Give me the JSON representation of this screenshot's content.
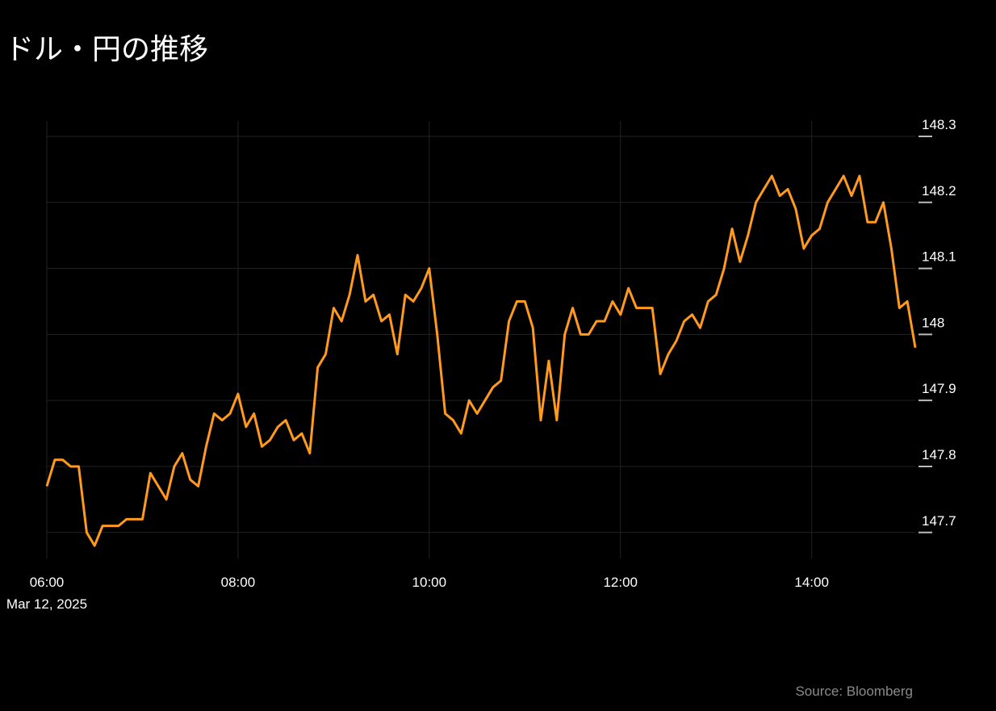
{
  "chart_data": {
    "type": "line",
    "title": "ドル・円の推移",
    "source": "Source: Bloomberg",
    "date_label": "Mar 12, 2025",
    "x": [
      "06:00",
      "06:05",
      "06:10",
      "06:15",
      "06:20",
      "06:25",
      "06:30",
      "06:35",
      "06:40",
      "06:45",
      "06:50",
      "06:55",
      "07:00",
      "07:05",
      "07:10",
      "07:15",
      "07:20",
      "07:25",
      "07:30",
      "07:35",
      "07:40",
      "07:45",
      "07:50",
      "07:55",
      "08:00",
      "08:05",
      "08:10",
      "08:15",
      "08:20",
      "08:25",
      "08:30",
      "08:35",
      "08:40",
      "08:45",
      "08:50",
      "08:55",
      "09:00",
      "09:05",
      "09:10",
      "09:15",
      "09:20",
      "09:25",
      "09:30",
      "09:35",
      "09:40",
      "09:45",
      "09:50",
      "09:55",
      "10:00",
      "10:05",
      "10:10",
      "10:15",
      "10:20",
      "10:25",
      "10:30",
      "10:35",
      "10:40",
      "10:45",
      "10:50",
      "10:55",
      "11:00",
      "11:05",
      "11:10",
      "11:15",
      "11:20",
      "11:25",
      "11:30",
      "11:35",
      "11:40",
      "11:45",
      "11:50",
      "11:55",
      "12:00",
      "12:05",
      "12:10",
      "12:15",
      "12:20",
      "12:25",
      "12:30",
      "12:35",
      "12:40",
      "12:45",
      "12:50",
      "12:55",
      "13:00",
      "13:05",
      "13:10",
      "13:15",
      "13:20",
      "13:25",
      "13:30",
      "13:35",
      "13:40",
      "13:45",
      "13:50",
      "13:55",
      "14:00",
      "14:05",
      "14:10",
      "14:15",
      "14:20",
      "14:25",
      "14:30",
      "14:35",
      "14:40",
      "14:45",
      "14:50",
      "14:55",
      "15:00",
      "15:05"
    ],
    "series": [
      {
        "name": "USD/JPY",
        "color": "#ff9a1e",
        "values": [
          147.77,
          147.81,
          147.81,
          147.8,
          147.8,
          147.7,
          147.68,
          147.71,
          147.71,
          147.71,
          147.72,
          147.72,
          147.72,
          147.79,
          147.77,
          147.75,
          147.8,
          147.82,
          147.78,
          147.77,
          147.83,
          147.88,
          147.87,
          147.88,
          147.91,
          147.86,
          147.88,
          147.83,
          147.84,
          147.86,
          147.87,
          147.84,
          147.85,
          147.82,
          147.95,
          147.97,
          148.04,
          148.02,
          148.06,
          148.12,
          148.05,
          148.06,
          148.02,
          148.03,
          147.97,
          148.06,
          148.05,
          148.07,
          148.1,
          148.0,
          147.88,
          147.87,
          147.85,
          147.9,
          147.88,
          147.9,
          147.92,
          147.93,
          148.02,
          148.05,
          148.05,
          148.01,
          147.87,
          147.96,
          147.87,
          148.0,
          148.04,
          148.0,
          148.0,
          148.02,
          148.02,
          148.05,
          148.03,
          148.07,
          148.04,
          148.04,
          148.04,
          147.94,
          147.97,
          147.99,
          148.02,
          148.03,
          148.01,
          148.05,
          148.06,
          148.1,
          148.16,
          148.11,
          148.15,
          148.2,
          148.22,
          148.24,
          148.21,
          148.22,
          148.19,
          148.13,
          148.15,
          148.16,
          148.2,
          148.22,
          148.24,
          148.21,
          148.24,
          148.17,
          148.17,
          148.2,
          148.13,
          148.04,
          148.05,
          147.98
        ]
      }
    ],
    "xlim": [
      "06:00",
      "15:05"
    ],
    "xticks": [
      "06:00",
      "08:00",
      "10:00",
      "12:00",
      "14:00"
    ],
    "ylim": [
      147.66,
      148.32
    ],
    "yticks": [
      147.7,
      147.8,
      147.9,
      148,
      148.1,
      148.2,
      148.3
    ],
    "grid": true
  }
}
